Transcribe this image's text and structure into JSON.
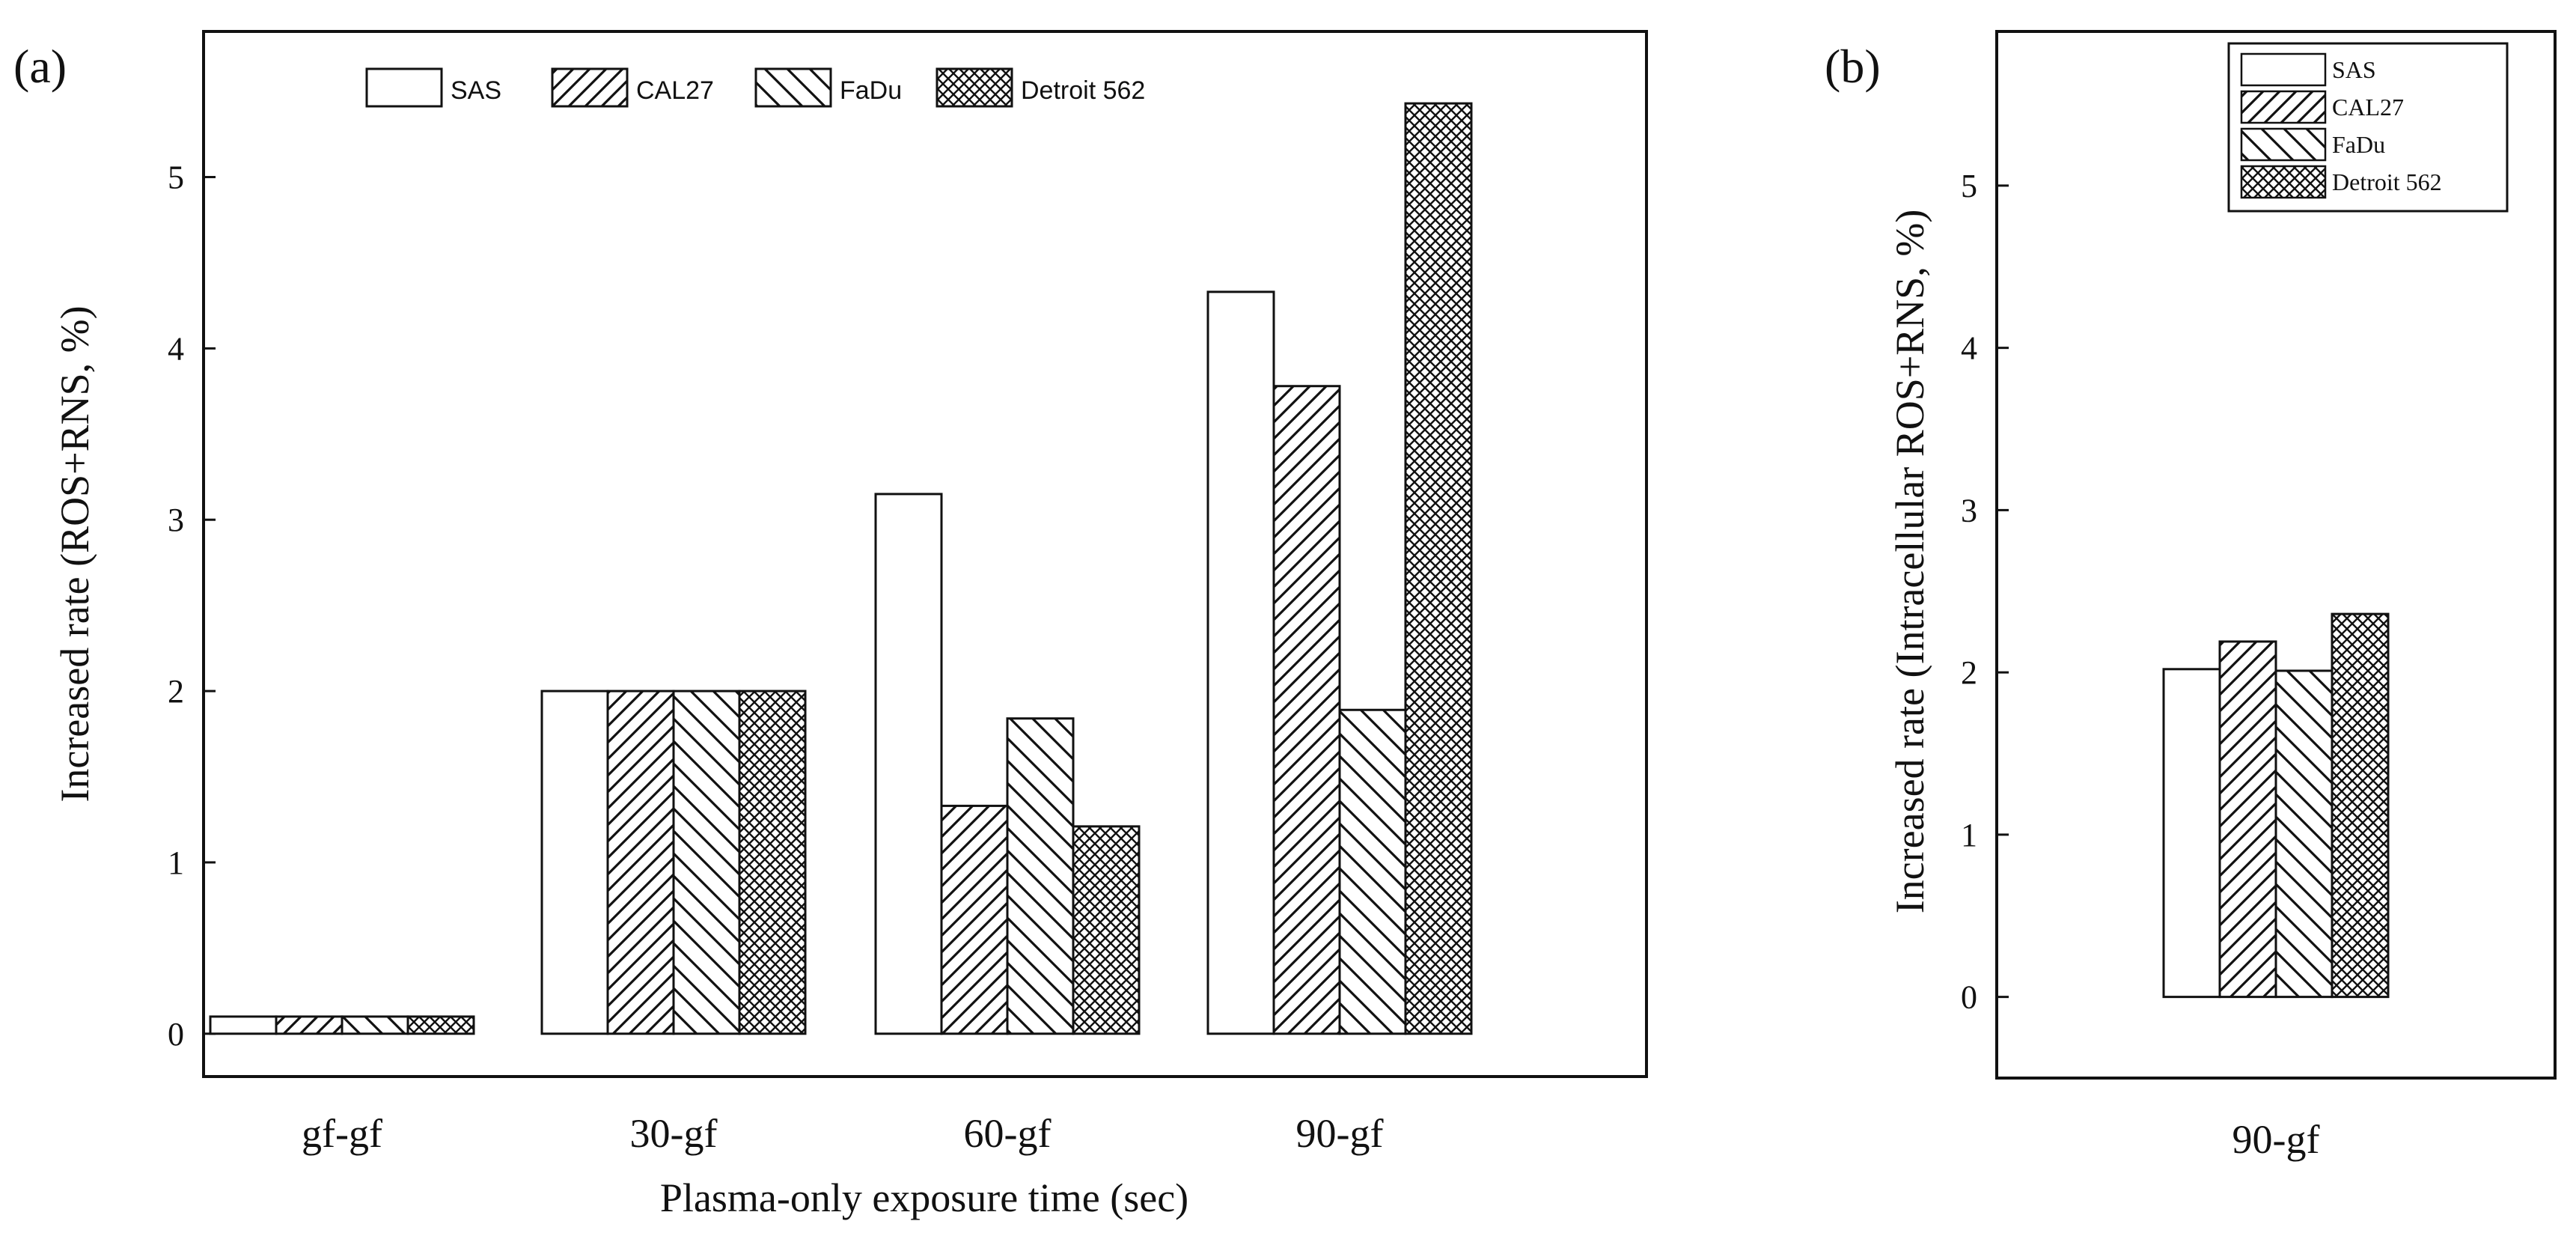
{
  "figure": {
    "panel_a_label": "(a)",
    "panel_b_label": "(b)"
  },
  "legend": {
    "series": [
      {
        "name": "SAS",
        "pattern": "none"
      },
      {
        "name": "CAL27",
        "pattern": "diag-right"
      },
      {
        "name": "FaDu",
        "pattern": "diag-left"
      },
      {
        "name": "Detroit 562",
        "pattern": "crosshatch"
      }
    ]
  },
  "colors": {
    "stroke": "#111111",
    "fill": "#ffffff"
  },
  "chart_data": [
    {
      "type": "bar",
      "panel": "(a)",
      "title": "",
      "xlabel": "Plasma-only exposure time (sec)",
      "ylabel": "Increased rate (ROS+RNS, %)",
      "categories": [
        "gf-gf",
        "30-gf",
        "60-gf",
        "90-gf"
      ],
      "series": [
        {
          "name": "SAS",
          "values": [
            0.1,
            2.0,
            3.15,
            4.33
          ]
        },
        {
          "name": "CAL27",
          "values": [
            0.1,
            2.0,
            1.33,
            3.78
          ]
        },
        {
          "name": "FaDu",
          "values": [
            0.1,
            2.0,
            1.84,
            1.89
          ]
        },
        {
          "name": "Detroit 562",
          "values": [
            0.1,
            2.0,
            1.21,
            5.43
          ]
        }
      ],
      "ylim": [
        -0.25,
        5.85
      ],
      "yticks": [
        0,
        1,
        2,
        3,
        4,
        5
      ],
      "legend_position": "top"
    },
    {
      "type": "bar",
      "panel": "(b)",
      "title": "",
      "xlabel": "",
      "ylabel": "Increased rate (Intracellular ROS+RNS, %)",
      "categories": [
        "90-gf"
      ],
      "series": [
        {
          "name": "SAS",
          "values": [
            2.02
          ]
        },
        {
          "name": "CAL27",
          "values": [
            2.19
          ]
        },
        {
          "name": "FaDu",
          "values": [
            2.01
          ]
        },
        {
          "name": "Detroit 562",
          "values": [
            2.36
          ]
        }
      ],
      "ylim": [
        -0.5,
        5.95
      ],
      "yticks": [
        0,
        1,
        2,
        3,
        4,
        5
      ],
      "legend_position": "top-right"
    }
  ]
}
